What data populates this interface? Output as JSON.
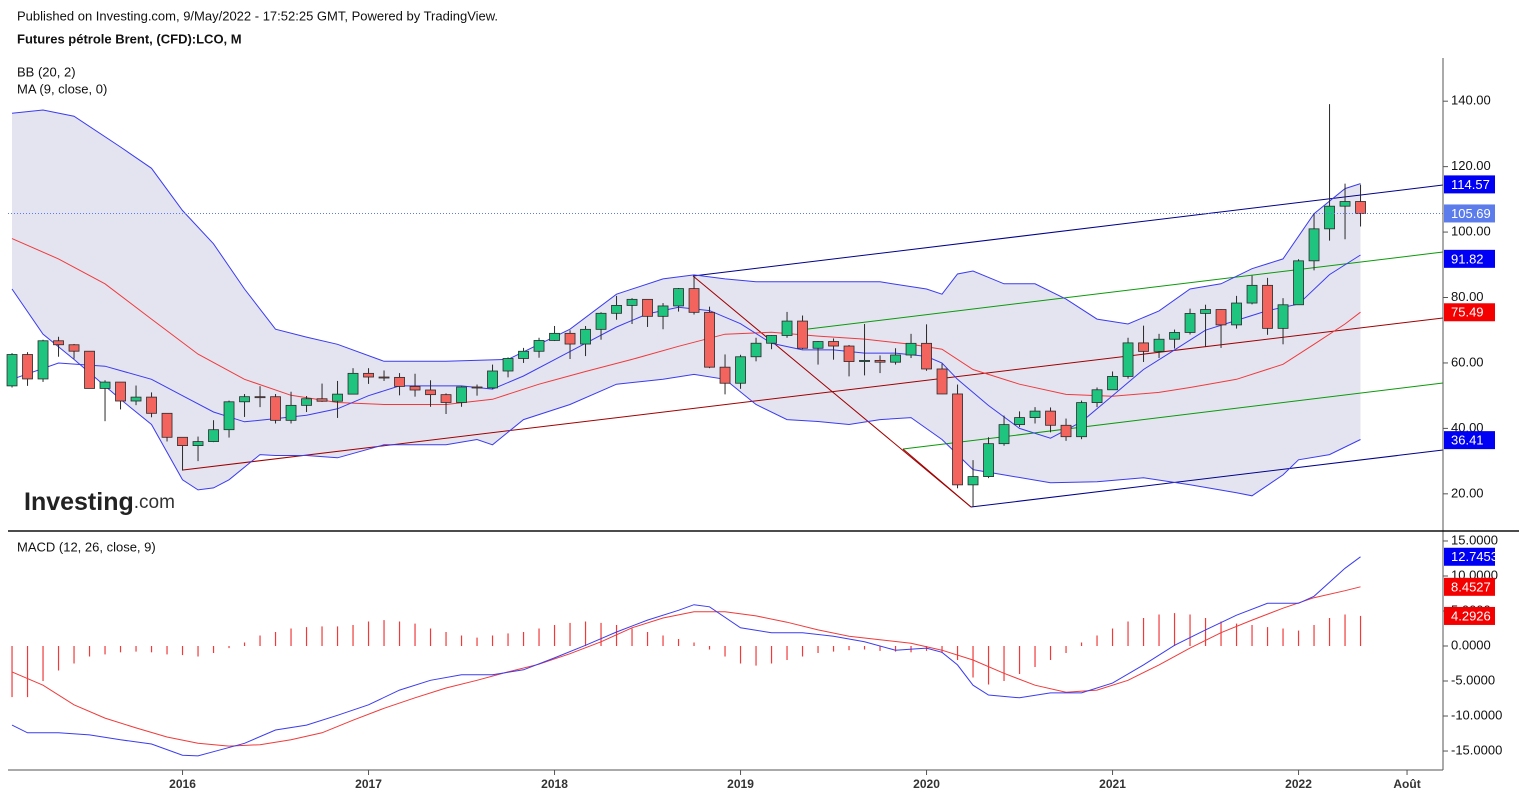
{
  "chart_data": [
    {
      "type": "candlestick",
      "subtitle": "Published on Investing.com, 9/May/2022 - 17:52:25 GMT, Powered by TradingView.",
      "title": "Futures pétrole Brent, (CFD):LCO, M",
      "indicators": [
        "BB (20, 2)",
        "MA (9, close, 0)"
      ],
      "logo": [
        "Investing",
        ".com"
      ],
      "xlim": [
        -0.26,
        92.32
      ],
      "ylim": [
        8.64,
        153.2
      ],
      "yticks": [
        {
          "value": 20,
          "label": "20.00"
        },
        {
          "value": 40,
          "label": "40.00"
        },
        {
          "value": 60,
          "label": "60.00"
        },
        {
          "value": 80,
          "label": "80.00"
        },
        {
          "value": 100,
          "label": "100.00"
        },
        {
          "value": 120,
          "label": "120.00"
        },
        {
          "value": 140,
          "label": "140.00"
        }
      ],
      "up_color": "#1fc47f",
      "down_color": "#f4645f",
      "band_color": "#e4e4f1",
      "open": [
        52.99,
        62.58,
        55.11,
        66.78,
        65.56,
        63.59,
        52.21,
        54.15,
        48.37,
        49.56,
        44.61,
        37.28,
        34.74,
        35.97,
        39.6,
        48.13,
        49.69,
        49.68,
        42.46,
        47.04,
        49.06,
        48.3,
        50.47,
        56.82,
        55.7,
        55.59,
        52.83,
        51.73,
        50.31,
        47.92,
        52.65,
        52.38,
        57.54,
        61.37,
        63.57,
        66.87,
        69.05,
        65.78,
        70.27,
        75.17,
        77.59,
        79.44,
        74.25,
        77.42,
        82.72,
        75.47,
        58.71,
        53.8,
        61.89,
        66.03,
        68.39,
        72.8,
        64.49,
        66.55,
        65.17,
        60.43,
        60.78,
        60.23,
        62.43,
        66.0,
        58.16,
        50.52,
        22.74,
        25.27,
        35.33,
        41.15,
        43.3,
        45.28,
        40.95,
        37.46,
        47.88,
        51.8,
        55.88,
        66.13,
        63.54,
        67.25,
        69.32,
        75.13,
        76.33,
        71.63,
        78.31,
        83.72,
        70.57,
        77.78,
        91.21,
        100.99,
        107.91,
        109.34
      ],
      "high": [
        63.0,
        63.3,
        67.1,
        68.0,
        65.8,
        63.6,
        54.7,
        54.0,
        53.1,
        51.0,
        44.7,
        37.3,
        37.5,
        42.5,
        48.5,
        50.5,
        52.9,
        50.5,
        51.2,
        49.9,
        53.7,
        54.5,
        58.4,
        58.4,
        57.7,
        56.9,
        56.7,
        54.7,
        50.7,
        52.9,
        53.4,
        59.5,
        61.7,
        64.6,
        67.7,
        71.3,
        70.0,
        71.3,
        75.5,
        80.5,
        79.8,
        79.4,
        78.3,
        82.9,
        86.7,
        77.2,
        62.6,
        62.5,
        67.7,
        68.5,
        75.6,
        74.5,
        66.7,
        67.5,
        65.5,
        71.9,
        62.3,
        64.5,
        68.9,
        71.8,
        59.8,
        53.4,
        30.3,
        37.3,
        43.9,
        45.2,
        46.5,
        46.4,
        43.0,
        48.5,
        52.5,
        57.4,
        67.7,
        71.4,
        68.9,
        70.2,
        76.6,
        77.8,
        76.4,
        80.5,
        86.7,
        86.0,
        79.8,
        91.7,
        105.8,
        139.1,
        114.8,
        114.5
      ],
      "low": [
        52.5,
        53.0,
        54.2,
        61.9,
        61.3,
        52.2,
        42.2,
        45.8,
        47.1,
        43.4,
        36.0,
        27.1,
        30.0,
        35.8,
        37.2,
        43.5,
        46.5,
        41.5,
        41.5,
        45.0,
        48.1,
        43.2,
        50.8,
        53.6,
        54.5,
        50.1,
        49.7,
        46.6,
        44.4,
        46.6,
        50.0,
        52.0,
        55.6,
        60.0,
        61.6,
        66.7,
        61.2,
        62.1,
        67.1,
        73.2,
        71.9,
        71.0,
        70.3,
        75.7,
        74.8,
        58.4,
        50.4,
        52.1,
        60.5,
        64.2,
        67.7,
        64.2,
        59.5,
        61.0,
        55.9,
        56.2,
        56.9,
        59.5,
        61.5,
        57.6,
        50.5,
        21.7,
        16.0,
        24.8,
        34.7,
        40.4,
        41.5,
        38.8,
        36.2,
        36.7,
        46.5,
        53.2,
        55.2,
        60.3,
        61.5,
        64.4,
        68.7,
        65.0,
        64.6,
        70.5,
        77.9,
        68.6,
        65.7,
        77.8,
        88.3,
        97.4,
        97.8,
        101.7
      ],
      "close": [
        62.58,
        55.11,
        66.78,
        65.56,
        63.59,
        52.21,
        54.15,
        48.37,
        49.56,
        44.61,
        37.28,
        34.74,
        35.97,
        39.6,
        48.13,
        49.69,
        49.68,
        42.46,
        47.04,
        49.06,
        48.3,
        50.47,
        56.82,
        55.7,
        55.59,
        52.83,
        51.73,
        50.31,
        47.92,
        52.65,
        52.38,
        57.54,
        61.37,
        63.57,
        66.87,
        69.05,
        65.78,
        70.27,
        75.17,
        77.59,
        79.44,
        74.25,
        77.42,
        82.72,
        75.47,
        58.71,
        53.8,
        61.89,
        66.03,
        68.39,
        72.8,
        64.49,
        66.55,
        65.17,
        60.43,
        60.78,
        60.23,
        62.43,
        66.0,
        58.16,
        50.52,
        22.74,
        25.27,
        35.33,
        41.15,
        43.3,
        45.28,
        40.95,
        37.46,
        47.88,
        51.8,
        55.88,
        66.13,
        63.54,
        67.25,
        69.32,
        75.13,
        76.33,
        71.63,
        78.31,
        83.72,
        70.57,
        77.78,
        91.21,
        100.99,
        107.91,
        109.34,
        105.69
      ],
      "bb_upper": {
        "color": "#3b3bf0",
        "x": [
          0,
          2,
          4,
          7,
          9,
          11,
          13,
          15,
          17,
          19,
          21,
          24,
          28,
          32,
          34,
          36,
          39,
          42,
          44,
          46,
          48,
          52,
          56,
          59,
          60,
          61,
          62,
          64,
          66,
          68,
          70,
          72,
          74,
          76,
          78,
          80,
          82,
          84,
          86,
          87
        ],
        "values": [
          136.3,
          137.3,
          135.4,
          126,
          119.5,
          106.6,
          96.4,
          82.6,
          70.3,
          67.9,
          65.7,
          60.5,
          60.5,
          61.1,
          65.7,
          70.3,
          81,
          85.7,
          86.9,
          85.7,
          84.8,
          84.8,
          84.8,
          82.6,
          81,
          87.2,
          88.1,
          84.2,
          84.2,
          79.5,
          73.4,
          71.9,
          75.9,
          82.6,
          84.2,
          88.8,
          91.8,
          105.6,
          113.3,
          114.8
        ]
      },
      "bb_lower": {
        "color": "#3b3bf0",
        "x": [
          0,
          2,
          4,
          7,
          9,
          11,
          12,
          13,
          14,
          16,
          17,
          19,
          21,
          24,
          28,
          30,
          31,
          33,
          36,
          39,
          42,
          44,
          46,
          48,
          50,
          52,
          54,
          56,
          58,
          60,
          62,
          64,
          67,
          70,
          73,
          76,
          79,
          80,
          82,
          83,
          85,
          87
        ],
        "values": [
          82.6,
          68.8,
          61.1,
          48.9,
          41.2,
          24.3,
          21.2,
          21.8,
          24.3,
          32,
          31.7,
          31.7,
          31,
          35,
          35,
          36.6,
          35,
          42.7,
          47.3,
          53.5,
          55,
          56.5,
          55,
          47.3,
          42.7,
          42.1,
          41.2,
          42.7,
          43.3,
          36.6,
          27.4,
          25.8,
          23.4,
          23.7,
          24.9,
          22.8,
          20.3,
          19.4,
          25.8,
          30.4,
          32,
          36.6
        ]
      },
      "bb_basis": {
        "color": "#f03a3a",
        "x": [
          0,
          3,
          6,
          9,
          12,
          15,
          18,
          21,
          24,
          28,
          31,
          34,
          37,
          40,
          43,
          46,
          49,
          52,
          55,
          58,
          60,
          62,
          65,
          68,
          71,
          74,
          76,
          79,
          82,
          84,
          86,
          87
        ],
        "values": [
          98,
          91.8,
          84.2,
          73.4,
          62.7,
          55,
          50.1,
          47.9,
          47.3,
          47.3,
          48.9,
          53.5,
          57.4,
          61.1,
          65.1,
          68.8,
          69.4,
          68.2,
          67.3,
          65.7,
          64.2,
          58,
          53.5,
          50.4,
          49.8,
          51,
          52.5,
          55,
          59.6,
          65.7,
          71.9,
          75.5
        ]
      },
      "ma": {
        "color": "#3b3bf0",
        "x": [
          0,
          3,
          6,
          9,
          11,
          13,
          15,
          17,
          19,
          21,
          23,
          25,
          27,
          29,
          31,
          33,
          35,
          37,
          39,
          41,
          43,
          45,
          47,
          49,
          51,
          53,
          55,
          57,
          59,
          60,
          61,
          63,
          65,
          67,
          69,
          71,
          73,
          75,
          77,
          79,
          81,
          83,
          85,
          87
        ],
        "values": [
          55,
          60,
          59,
          55,
          50,
          45,
          42,
          43,
          44,
          46,
          50,
          53,
          53,
          53,
          52,
          56,
          61,
          66,
          71,
          75,
          77,
          76,
          72,
          66,
          64,
          64,
          63,
          63,
          62,
          60,
          55,
          47,
          40,
          37,
          42,
          50,
          58,
          64,
          70,
          73,
          76,
          78,
          87,
          93
        ]
      },
      "markers": [
        {
          "value": 114.57,
          "color": "#0000f5"
        },
        {
          "value": 105.69,
          "color": "#5b7cea",
          "dotted": true
        },
        {
          "value": 91.82,
          "color": "#0000f5"
        },
        {
          "value": 75.49,
          "color": "#f50000"
        },
        {
          "value": 36.41,
          "color": "#0000f5"
        }
      ]
    },
    {
      "type": "macd",
      "indicator": "MACD (12, 26, close, 9)",
      "xlim": [
        -0.26,
        92.32
      ],
      "xticks": [
        {
          "value": 11,
          "label": "2016"
        },
        {
          "value": 23,
          "label": "2017"
        },
        {
          "value": 35,
          "label": "2018"
        },
        {
          "value": 47,
          "label": "2019"
        },
        {
          "value": 59,
          "label": "2020"
        },
        {
          "value": 71,
          "label": "2021"
        },
        {
          "value": 83,
          "label": "2022"
        },
        {
          "value": 90,
          "label": "Août"
        }
      ],
      "ylim": [
        -17.71,
        16.14
      ],
      "yticks": [
        {
          "value": 15,
          "label": "15.0000"
        },
        {
          "value": 10,
          "label": "10.0000"
        },
        {
          "value": 5,
          "label": "5.0000"
        },
        {
          "value": 0,
          "label": "0.0000"
        },
        {
          "value": -5,
          "label": "-5.0000"
        },
        {
          "value": -10,
          "label": "-10.0000"
        },
        {
          "value": -15,
          "label": "-15.0000"
        }
      ],
      "histogram": {
        "color": "#f03a3a",
        "values": [
          -7.3,
          -7.3,
          -5,
          -3.5,
          -2.5,
          -1.5,
          -1.2,
          -0.9,
          -0.8,
          -0.9,
          -1.2,
          -1.3,
          -1.5,
          -1,
          -0.3,
          0.5,
          1.5,
          2,
          2.5,
          2.7,
          2.8,
          2.8,
          3.0,
          3.5,
          3.7,
          3.5,
          3.2,
          2.5,
          2,
          1.5,
          1.2,
          1.5,
          1.8,
          2,
          2.5,
          3,
          3.3,
          3.5,
          3.3,
          3,
          2.5,
          2,
          1.5,
          1,
          0.5,
          -0.5,
          -1.5,
          -2.5,
          -2.8,
          -2.5,
          -2,
          -1.5,
          -1,
          -0.8,
          -0.6,
          -0.5,
          -0.7,
          -0.8,
          -0.9,
          -0.7,
          -1,
          -2,
          -4.5,
          -5.5,
          -5,
          -4,
          -3,
          -2,
          -1,
          0.5,
          1.5,
          2.5,
          3.5,
          4,
          4.5,
          4.7,
          4.5,
          4,
          3.5,
          3.2,
          3,
          2.7,
          2.5,
          2.2,
          3,
          4,
          4.5,
          4.3
        ]
      },
      "macd": {
        "color": "#3b3bf0",
        "x": [
          0,
          1,
          3,
          5,
          7,
          9,
          11,
          12,
          13,
          15,
          17,
          19,
          21,
          23,
          25,
          27,
          29,
          31,
          33,
          35,
          37,
          39,
          41,
          43,
          44,
          45,
          47,
          49,
          51,
          53,
          55,
          57,
          59,
          60,
          61,
          62,
          63,
          65,
          67,
          69,
          71,
          73,
          75,
          77,
          79,
          81,
          83,
          84,
          86,
          87
        ],
        "values": [
          -11.3,
          -12.4,
          -12.4,
          -12.7,
          -13.4,
          -14,
          -15.6,
          -15.7,
          -15.1,
          -13.9,
          -12,
          -11.3,
          -9.9,
          -8.4,
          -6.3,
          -4.9,
          -4.1,
          -4.1,
          -3.4,
          -1.7,
          0.1,
          2,
          3.7,
          5.1,
          5.9,
          5.6,
          2.6,
          1.9,
          1.9,
          1.4,
          0.6,
          -0.6,
          -0.3,
          -0.9,
          -2.7,
          -5.6,
          -7,
          -7.4,
          -6.7,
          -6.7,
          -5.3,
          -2.7,
          0.1,
          2.3,
          4.4,
          6.1,
          6.1,
          7.1,
          11.1,
          12.7453
        ]
      },
      "signal": {
        "color": "#f03a3a",
        "x": [
          0,
          2,
          4,
          6,
          8,
          10,
          12,
          14,
          16,
          18,
          20,
          22,
          24,
          26,
          28,
          30,
          32,
          34,
          36,
          38,
          40,
          42,
          44,
          46,
          48,
          50,
          52,
          54,
          56,
          58,
          60,
          62,
          64,
          66,
          68,
          70,
          72,
          74,
          76,
          78,
          80,
          82,
          84,
          86,
          87
        ],
        "values": [
          -3.7,
          -5.6,
          -8.4,
          -10.3,
          -11.7,
          -13,
          -13.9,
          -14.3,
          -14.1,
          -13.4,
          -12.4,
          -10.6,
          -8.9,
          -7.4,
          -6,
          -4.9,
          -3.7,
          -2.6,
          -1.1,
          0.6,
          2.6,
          4,
          4.9,
          4.9,
          4.3,
          3.4,
          2.3,
          1.4,
          0.9,
          0.4,
          -0.6,
          -2,
          -3.9,
          -5.6,
          -6.6,
          -6.3,
          -4.9,
          -2.7,
          -0.3,
          1.9,
          3.7,
          5.4,
          6.9,
          7.9,
          8.4527
        ]
      },
      "markers": [
        {
          "value": 12.7453,
          "color": "#0000f5"
        },
        {
          "value": 8.4527,
          "color": "#f50000"
        },
        {
          "value": 4.2926,
          "color": "#f50000"
        }
      ]
    }
  ]
}
